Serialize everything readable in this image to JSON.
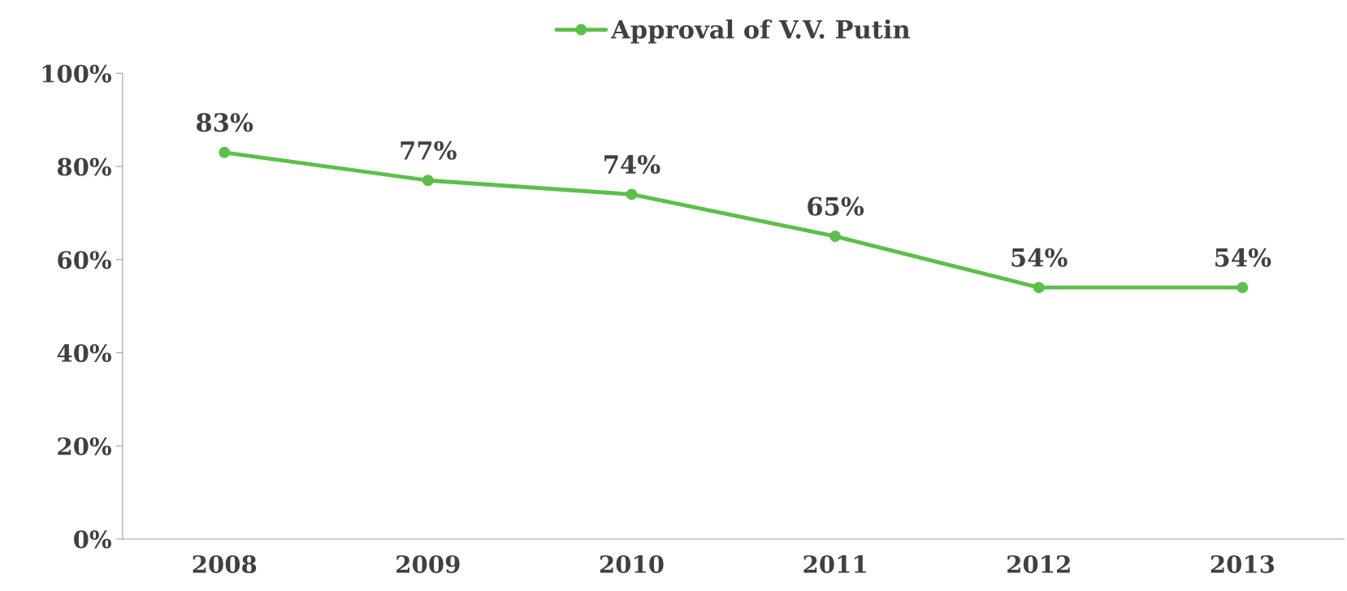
{
  "chart_data": {
    "type": "line",
    "categories": [
      "2008",
      "2009",
      "2010",
      "2011",
      "2012",
      "2013"
    ],
    "series": [
      {
        "name": "Approval of V.V. Putin",
        "color": "#5cbf4a",
        "values": [
          83,
          77,
          74,
          65,
          54,
          54
        ],
        "value_labels": [
          "83%",
          "77%",
          "74%",
          "65%",
          "54%",
          "54%"
        ]
      }
    ],
    "ylim": [
      0,
      100
    ],
    "yticks": [
      {
        "value": 0,
        "label": "0%"
      },
      {
        "value": 20,
        "label": "20%"
      },
      {
        "value": 40,
        "label": "40%"
      },
      {
        "value": 60,
        "label": "60%"
      },
      {
        "value": 80,
        "label": "80%"
      },
      {
        "value": 100,
        "label": "100%"
      }
    ],
    "grid": false,
    "legend": "top",
    "marker": "circle",
    "line_style": "solid"
  }
}
